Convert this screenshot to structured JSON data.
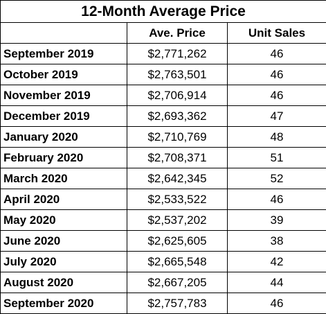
{
  "title": "12-Month Average Price",
  "columns": {
    "month": "",
    "price": "Ave. Price",
    "sales": "Unit Sales"
  },
  "rows": [
    {
      "month": "September 2019",
      "price": "$2,771,262",
      "sales": "46"
    },
    {
      "month": "October 2019",
      "price": "$2,763,501",
      "sales": "46"
    },
    {
      "month": "November 2019",
      "price": "$2,706,914",
      "sales": "46"
    },
    {
      "month": "December 2019",
      "price": "$2,693,362",
      "sales": "47"
    },
    {
      "month": "January 2020",
      "price": "$2,710,769",
      "sales": "48"
    },
    {
      "month": "February 2020",
      "price": "$2,708,371",
      "sales": "51"
    },
    {
      "month": "March 2020",
      "price": "$2,642,345",
      "sales": "52"
    },
    {
      "month": "April 2020",
      "price": "$2,533,522",
      "sales": "46"
    },
    {
      "month": "May 2020",
      "price": "$2,537,202",
      "sales": "39"
    },
    {
      "month": "June 2020",
      "price": "$2,625,605",
      "sales": "38"
    },
    {
      "month": "July 2020",
      "price": "$2,665,548",
      "sales": "42"
    },
    {
      "month": "August 2020",
      "price": "$2,667,205",
      "sales": "44"
    },
    {
      "month": "September 2020",
      "price": "$2,757,783",
      "sales": "46"
    }
  ]
}
